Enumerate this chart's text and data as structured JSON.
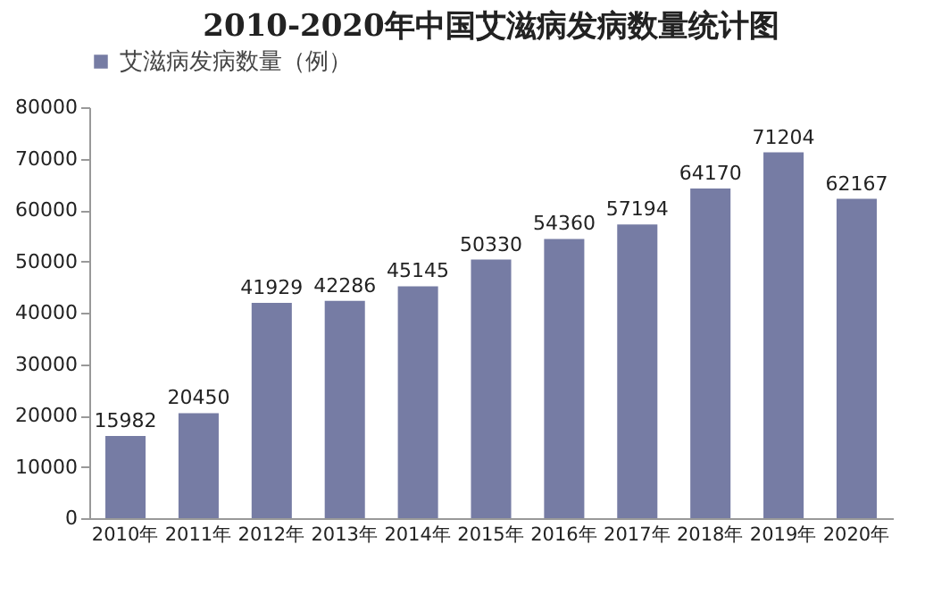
{
  "chart_data": {
    "type": "bar",
    "title": "2010-2020年中国艾滋病发病数量统计图",
    "categories": [
      "2010年",
      "2011年",
      "2012年",
      "2013年",
      "2014年",
      "2015年",
      "2016年",
      "2017年",
      "2018年",
      "2019年",
      "2020年"
    ],
    "series": [
      {
        "name": "艾滋病发病数量（例）",
        "color": "#767ca4",
        "values": [
          15982,
          20450,
          41929,
          42286,
          45145,
          50330,
          54360,
          57194,
          64170,
          71204,
          62167
        ]
      }
    ],
    "ylim": [
      0,
      80000
    ],
    "yticks": [
      0,
      10000,
      20000,
      30000,
      40000,
      50000,
      60000,
      70000,
      80000
    ],
    "grid": false,
    "legend": "top",
    "data_labels": true
  }
}
